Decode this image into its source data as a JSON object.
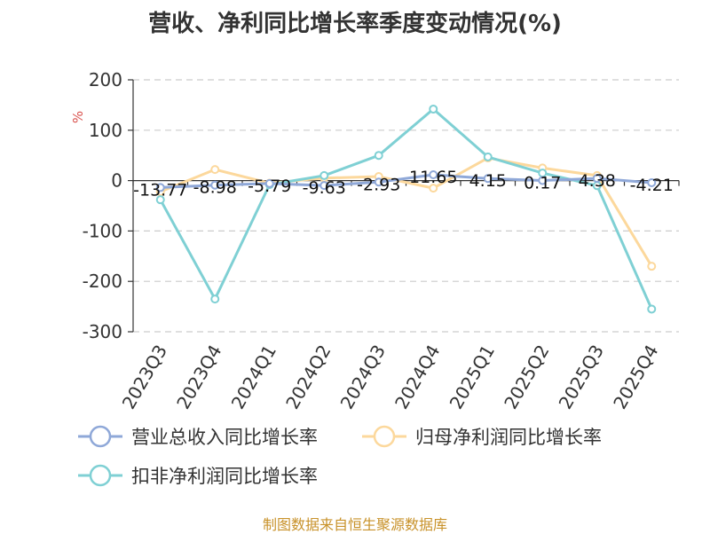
{
  "chart_data": {
    "type": "line",
    "title": "营收、净利同比增长率季度变动情况(%)",
    "ylabel": "%",
    "xlabel": "",
    "categories": [
      "2023Q3",
      "2023Q4",
      "2024Q1",
      "2024Q2",
      "2024Q3",
      "2024Q4",
      "2025Q1",
      "2025Q2",
      "2025Q3",
      "2025Q4"
    ],
    "ylim": [
      -300,
      200
    ],
    "yticks": [
      200,
      100,
      0,
      -100,
      -200,
      -300
    ],
    "grid": true,
    "legend_position": "bottom-left",
    "series": [
      {
        "name": "营业总收入同比增长率",
        "color": "#8fa8d8",
        "values": [
          -13.77,
          -8.98,
          -5.79,
          -9.63,
          -2.93,
          11.65,
          4.15,
          0.17,
          4.38,
          -4.21
        ],
        "labels": [
          "-13.77",
          "-8.98",
          "-5.79",
          "-9.63",
          "-2.93",
          "11.65",
          "4.15",
          "0.17",
          "4.38",
          "-4.21"
        ]
      },
      {
        "name": "归母净利润同比增长率",
        "color": "#fcd89c",
        "values": [
          -22,
          22,
          -5,
          5,
          8,
          -15,
          45,
          25,
          10,
          -170
        ]
      },
      {
        "name": "扣非净利润同比增长率",
        "color": "#7fd0d4",
        "values": [
          -38,
          -235,
          -8,
          10,
          50,
          142,
          47,
          15,
          -10,
          -255
        ]
      }
    ]
  },
  "source": "制图数据来自恒生聚源数据库"
}
